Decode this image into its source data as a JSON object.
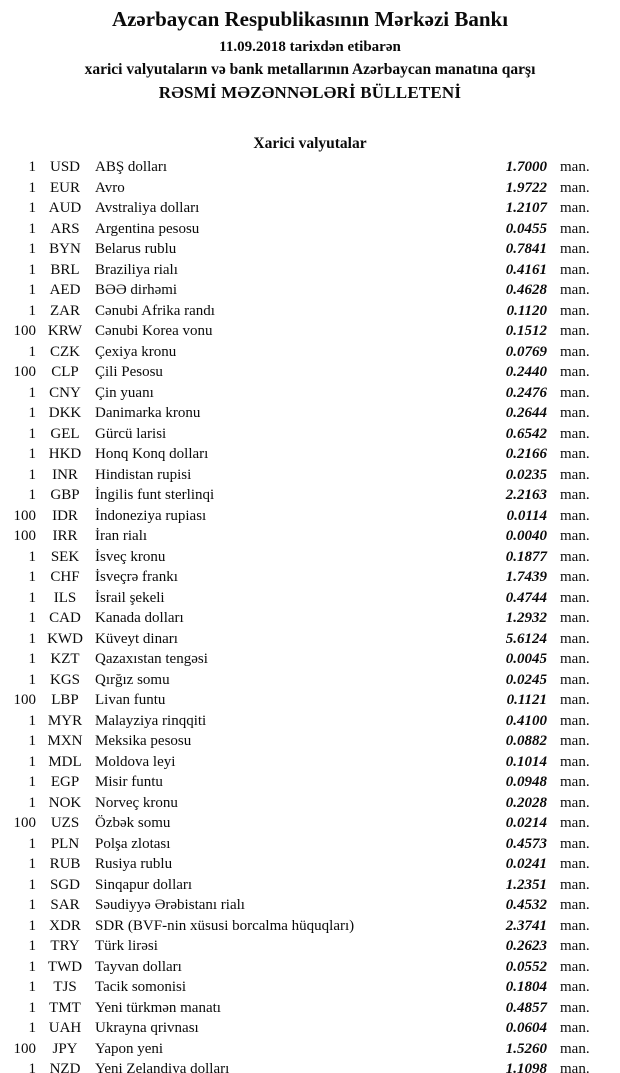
{
  "header": {
    "bank_title": "Azərbaycan Respublikasının Mərkəzi Bankı",
    "date_line": "11.09.2018 tarixdən etibarən",
    "subtitle": "xarici valyutaların və bank metallarının Azərbaycan manatına qarşı",
    "bulletin_title": "RƏSMİ MƏZƏNNƏLƏRİ BÜLLETENİ"
  },
  "section": {
    "title": "Xarici valyutalar"
  },
  "unit_label": "man.",
  "colors": {
    "background": "#ffffff",
    "text": "#0a0a0a"
  },
  "rates": [
    {
      "qty": "1",
      "code": "USD",
      "name": "ABŞ dolları",
      "rate": "1.7000"
    },
    {
      "qty": "1",
      "code": "EUR",
      "name": "Avro",
      "rate": "1.9722"
    },
    {
      "qty": "1",
      "code": "AUD",
      "name": "Avstraliya dolları",
      "rate": "1.2107"
    },
    {
      "qty": "1",
      "code": "ARS",
      "name": "Argentina pesosu",
      "rate": "0.0455"
    },
    {
      "qty": "1",
      "code": "BYN",
      "name": "Belarus rublu",
      "rate": "0.7841"
    },
    {
      "qty": "1",
      "code": "BRL",
      "name": "Braziliya rialı",
      "rate": "0.4161"
    },
    {
      "qty": "1",
      "code": "AED",
      "name": "BƏƏ dirhəmi",
      "rate": "0.4628"
    },
    {
      "qty": "1",
      "code": "ZAR",
      "name": "Cənubi Afrika randı",
      "rate": "0.1120"
    },
    {
      "qty": "100",
      "code": "KRW",
      "name": "Cənubi Korea vonu",
      "rate": "0.1512"
    },
    {
      "qty": "1",
      "code": "CZK",
      "name": "Çexiya kronu",
      "rate": "0.0769"
    },
    {
      "qty": "100",
      "code": "CLP",
      "name": "Çili Pesosu",
      "rate": "0.2440"
    },
    {
      "qty": "1",
      "code": "CNY",
      "name": "Çin yuanı",
      "rate": "0.2476"
    },
    {
      "qty": "1",
      "code": "DKK",
      "name": "Danimarka kronu",
      "rate": "0.2644"
    },
    {
      "qty": "1",
      "code": "GEL",
      "name": "Gürcü larisi",
      "rate": "0.6542"
    },
    {
      "qty": "1",
      "code": "HKD",
      "name": "Honq Konq dolları",
      "rate": "0.2166"
    },
    {
      "qty": "1",
      "code": "INR",
      "name": "Hindistan rupisi",
      "rate": "0.0235"
    },
    {
      "qty": "1",
      "code": "GBP",
      "name": "İngilis funt sterlinqi",
      "rate": "2.2163"
    },
    {
      "qty": "100",
      "code": "IDR",
      "name": "İndoneziya rupiası",
      "rate": "0.0114"
    },
    {
      "qty": "100",
      "code": "IRR",
      "name": "İran rialı",
      "rate": "0.0040"
    },
    {
      "qty": "1",
      "code": "SEK",
      "name": "İsveç kronu",
      "rate": "0.1877"
    },
    {
      "qty": "1",
      "code": "CHF",
      "name": "İsveçrə frankı",
      "rate": "1.7439"
    },
    {
      "qty": "1",
      "code": "ILS",
      "name": "İsrail şekeli",
      "rate": "0.4744"
    },
    {
      "qty": "1",
      "code": "CAD",
      "name": "Kanada dolları",
      "rate": "1.2932"
    },
    {
      "qty": "1",
      "code": "KWD",
      "name": "Küveyt dinarı",
      "rate": "5.6124"
    },
    {
      "qty": "1",
      "code": "KZT",
      "name": "Qazaxıstan tengəsi",
      "rate": "0.0045"
    },
    {
      "qty": "1",
      "code": "KGS",
      "name": "Qırğız somu",
      "rate": "0.0245"
    },
    {
      "qty": "100",
      "code": "LBP",
      "name": "Livan funtu",
      "rate": "0.1121"
    },
    {
      "qty": "1",
      "code": "MYR",
      "name": "Malayziya rinqqiti",
      "rate": "0.4100"
    },
    {
      "qty": "1",
      "code": "MXN",
      "name": "Meksika pesosu",
      "rate": "0.0882"
    },
    {
      "qty": "1",
      "code": "MDL",
      "name": "Moldova leyi",
      "rate": "0.1014"
    },
    {
      "qty": "1",
      "code": "EGP",
      "name": "Misir funtu",
      "rate": "0.0948"
    },
    {
      "qty": "1",
      "code": "NOK",
      "name": "Norveç kronu",
      "rate": "0.2028"
    },
    {
      "qty": "100",
      "code": "UZS",
      "name": "Özbək somu",
      "rate": "0.0214"
    },
    {
      "qty": "1",
      "code": "PLN",
      "name": "Polşa zlotası",
      "rate": "0.4573"
    },
    {
      "qty": "1",
      "code": "RUB",
      "name": "Rusiya rublu",
      "rate": "0.0241"
    },
    {
      "qty": "1",
      "code": "SGD",
      "name": "Sinqapur dolları",
      "rate": "1.2351"
    },
    {
      "qty": "1",
      "code": "SAR",
      "name": "Səudiyyə Ərəbistanı rialı",
      "rate": "0.4532"
    },
    {
      "qty": "1",
      "code": "XDR",
      "name": "SDR (BVF-nin xüsusi borcalma hüquqları)",
      "rate": "2.3741"
    },
    {
      "qty": "1",
      "code": "TRY",
      "name": "Türk lirəsi",
      "rate": "0.2623"
    },
    {
      "qty": "1",
      "code": "TWD",
      "name": "Tayvan dolları",
      "rate": "0.0552"
    },
    {
      "qty": "1",
      "code": "TJS",
      "name": "Tacik somonisi",
      "rate": "0.1804"
    },
    {
      "qty": "1",
      "code": "TMT",
      "name": "Yeni türkmən manatı",
      "rate": "0.4857"
    },
    {
      "qty": "1",
      "code": "UAH",
      "name": "Ukrayna qrivnası",
      "rate": "0.0604"
    },
    {
      "qty": "100",
      "code": "JPY",
      "name": "Yapon yeni",
      "rate": "1.5260"
    },
    {
      "qty": "1",
      "code": "NZD",
      "name": "Yeni Zelandiya dolları",
      "rate": "1.1098"
    }
  ]
}
